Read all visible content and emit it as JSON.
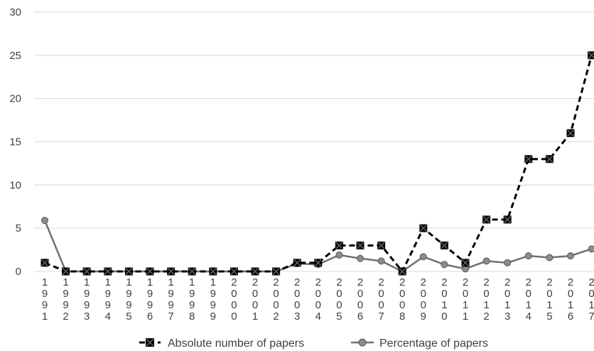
{
  "chart_data": {
    "type": "line",
    "x": [
      "1991",
      "1992",
      "1993",
      "1994",
      "1995",
      "1996",
      "1997",
      "1998",
      "1999",
      "2000",
      "2001",
      "2002",
      "2003",
      "2004",
      "2005",
      "2006",
      "2007",
      "2008",
      "2009",
      "2010",
      "2011",
      "2012",
      "2013",
      "2014",
      "2015",
      "2016",
      "2017"
    ],
    "series": [
      {
        "name": "Absolute number of papers",
        "values": [
          1,
          0,
          0,
          0,
          0,
          0,
          0,
          0,
          0,
          0,
          0,
          0,
          1,
          1,
          3,
          3,
          3,
          0,
          5,
          3,
          1,
          6,
          6,
          13,
          13,
          16,
          25
        ],
        "color": "#000000",
        "style": "dashed",
        "marker": "x-square"
      },
      {
        "name": "Percentage of papers",
        "values": [
          5.9,
          0,
          0,
          0,
          0,
          0,
          0,
          0,
          0,
          0,
          0,
          0,
          0.9,
          0.8,
          1.9,
          1.5,
          1.2,
          0,
          1.7,
          0.8,
          0.3,
          1.2,
          1.0,
          1.8,
          1.6,
          1.8,
          2.6
        ],
        "color": "#707070",
        "style": "solid",
        "marker": "circle"
      }
    ],
    "yticks": [
      "0",
      "5",
      "10",
      "15",
      "20",
      "25",
      "30"
    ],
    "ylim": [
      0,
      30
    ],
    "grid": true,
    "legend_position": "bottom"
  }
}
